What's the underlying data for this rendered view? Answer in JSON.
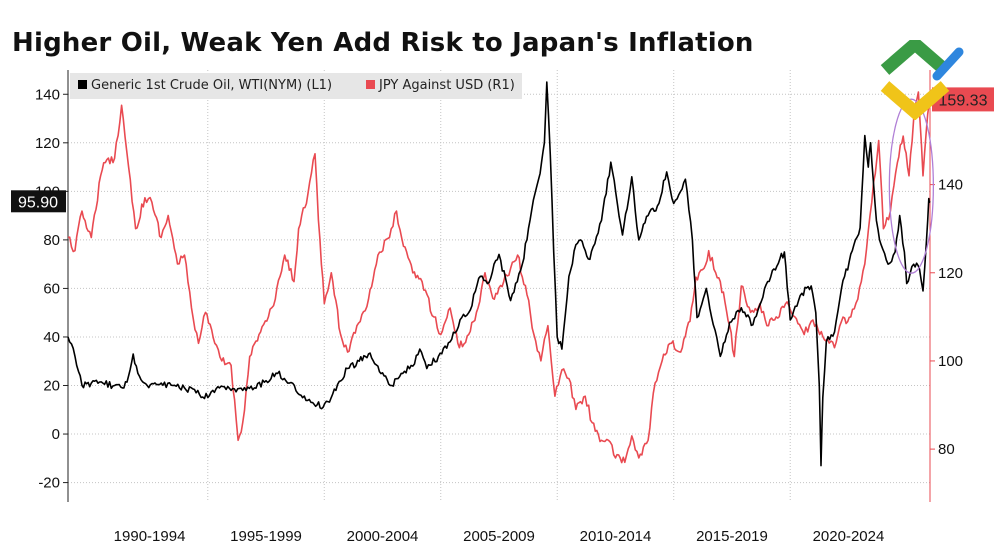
{
  "title": "Higher Oil, Weak Yen Add Risk to Japan's Inflation",
  "logo": {
    "name": "brand logo",
    "colors": [
      "#3a9b45",
      "#f0c419",
      "#2e86de"
    ]
  },
  "chart_data": {
    "type": "line",
    "title": "Higher Oil, Weak Yen Add Risk to Japan's Inflation",
    "xlabel": "",
    "x_range": [
      1988.0,
      2025.0
    ],
    "x_tick_labels": [
      {
        "x": 1991.5,
        "label": "1990-1994"
      },
      {
        "x": 1996.5,
        "label": "1995-1999"
      },
      {
        "x": 2001.5,
        "label": "2000-2004"
      },
      {
        "x": 2006.5,
        "label": "2005-2009"
      },
      {
        "x": 2011.5,
        "label": "2010-2014"
      },
      {
        "x": 2016.5,
        "label": "2015-2019"
      },
      {
        "x": 2021.5,
        "label": "2020-2024"
      }
    ],
    "x_gridlines": [
      1994,
      1999,
      2004,
      2009,
      2014,
      2019
    ],
    "left_axis": {
      "ylim": [
        -28,
        150
      ],
      "ticks": [
        -20,
        0,
        20,
        40,
        60,
        80,
        100,
        120,
        140
      ]
    },
    "right_axis": {
      "ylim": [
        68,
        166
      ],
      "ticks": [
        80,
        100,
        120,
        140
      ]
    },
    "legend": [
      {
        "name": "Generic 1st Crude Oil, WTI(NYM) (L1)",
        "color": "#000000"
      },
      {
        "name": "JPY Against USD (R1)",
        "color": "#e94a51"
      }
    ],
    "last_value_labels": [
      {
        "series": "Generic 1st Crude Oil, WTI(NYM)",
        "label": "95.90",
        "value": 95.9,
        "axis": "left"
      },
      {
        "series": "JPY Against USD",
        "label": "159.33",
        "value": 159.33,
        "axis": "right"
      }
    ],
    "annotation": {
      "type": "ellipse",
      "color": "#b07fd6",
      "x": 2024.2,
      "left_value": 98
    },
    "series": [
      {
        "name": "Generic 1st Crude Oil, WTI(NYM)",
        "axis": "left",
        "color": "#000000",
        "points": [
          [
            1988.0,
            40
          ],
          [
            1988.3,
            32
          ],
          [
            1988.6,
            20
          ],
          [
            1989.0,
            21
          ],
          [
            1989.5,
            21
          ],
          [
            1990.0,
            20
          ],
          [
            1990.4,
            19
          ],
          [
            1990.6,
            24
          ],
          [
            1990.8,
            33
          ],
          [
            1991.0,
            25
          ],
          [
            1991.4,
            20
          ],
          [
            1992.0,
            21
          ],
          [
            1992.5,
            20
          ],
          [
            1993.0,
            19
          ],
          [
            1993.5,
            17
          ],
          [
            1994.0,
            15
          ],
          [
            1994.5,
            19
          ],
          [
            1995.0,
            18
          ],
          [
            1995.5,
            18
          ],
          [
            1996.0,
            19
          ],
          [
            1996.5,
            22
          ],
          [
            1997.0,
            25
          ],
          [
            1997.5,
            21
          ],
          [
            1998.0,
            16
          ],
          [
            1998.5,
            13
          ],
          [
            1998.95,
            11
          ],
          [
            1999.5,
            18
          ],
          [
            2000.0,
            27
          ],
          [
            2000.5,
            30
          ],
          [
            2000.9,
            33
          ],
          [
            2001.3,
            28
          ],
          [
            2001.9,
            20
          ],
          [
            2002.3,
            25
          ],
          [
            2002.8,
            28
          ],
          [
            2003.1,
            35
          ],
          [
            2003.4,
            27
          ],
          [
            2003.9,
            32
          ],
          [
            2004.4,
            38
          ],
          [
            2004.9,
            48
          ],
          [
            2005.2,
            50
          ],
          [
            2005.7,
            65
          ],
          [
            2006.0,
            62
          ],
          [
            2006.5,
            74
          ],
          [
            2007.0,
            55
          ],
          [
            2007.5,
            70
          ],
          [
            2007.9,
            92
          ],
          [
            2008.2,
            105
          ],
          [
            2008.45,
            120
          ],
          [
            2008.55,
            145
          ],
          [
            2008.7,
            115
          ],
          [
            2008.85,
            75
          ],
          [
            2009.0,
            40
          ],
          [
            2009.2,
            35
          ],
          [
            2009.5,
            65
          ],
          [
            2009.8,
            78
          ],
          [
            2010.0,
            80
          ],
          [
            2010.4,
            72
          ],
          [
            2010.9,
            88
          ],
          [
            2011.3,
            112
          ],
          [
            2011.8,
            82
          ],
          [
            2012.2,
            106
          ],
          [
            2012.5,
            80
          ],
          [
            2012.9,
            90
          ],
          [
            2013.3,
            94
          ],
          [
            2013.7,
            108
          ],
          [
            2014.0,
            95
          ],
          [
            2014.5,
            105
          ],
          [
            2014.8,
            80
          ],
          [
            2015.0,
            48
          ],
          [
            2015.4,
            60
          ],
          [
            2015.7,
            45
          ],
          [
            2016.0,
            32
          ],
          [
            2016.4,
            46
          ],
          [
            2016.9,
            52
          ],
          [
            2017.4,
            45
          ],
          [
            2017.9,
            60
          ],
          [
            2018.3,
            68
          ],
          [
            2018.75,
            75
          ],
          [
            2019.0,
            47
          ],
          [
            2019.5,
            58
          ],
          [
            2019.9,
            61
          ],
          [
            2020.1,
            50
          ],
          [
            2020.25,
            20
          ],
          [
            2020.32,
            -13
          ],
          [
            2020.4,
            15
          ],
          [
            2020.55,
            38
          ],
          [
            2020.9,
            42
          ],
          [
            2021.2,
            60
          ],
          [
            2021.8,
            80
          ],
          [
            2022.0,
            85
          ],
          [
            2022.2,
            123
          ],
          [
            2022.35,
            110
          ],
          [
            2022.45,
            120
          ],
          [
            2022.7,
            88
          ],
          [
            2022.9,
            78
          ],
          [
            2023.2,
            70
          ],
          [
            2023.5,
            75
          ],
          [
            2023.7,
            90
          ],
          [
            2023.9,
            75
          ],
          [
            2024.0,
            62
          ],
          [
            2024.3,
            70
          ],
          [
            2024.55,
            68
          ],
          [
            2024.7,
            59
          ],
          [
            2024.85,
            80
          ],
          [
            2024.95,
            97
          ],
          [
            2025.0,
            95.9
          ]
        ]
      },
      {
        "name": "JPY Against USD",
        "axis": "right",
        "color": "#e94a51",
        "points": [
          [
            1988.0,
            128
          ],
          [
            1988.3,
            125
          ],
          [
            1988.6,
            134
          ],
          [
            1989.0,
            128
          ],
          [
            1989.4,
            142
          ],
          [
            1989.6,
            145
          ],
          [
            1990.0,
            146
          ],
          [
            1990.3,
            158
          ],
          [
            1990.6,
            144
          ],
          [
            1990.9,
            130
          ],
          [
            1991.3,
            137
          ],
          [
            1991.6,
            136
          ],
          [
            1992.0,
            128
          ],
          [
            1992.3,
            133
          ],
          [
            1992.7,
            122
          ],
          [
            1993.0,
            124
          ],
          [
            1993.3,
            112
          ],
          [
            1993.6,
            104
          ],
          [
            1993.9,
            111
          ],
          [
            1994.3,
            104
          ],
          [
            1994.6,
            100
          ],
          [
            1995.0,
            99
          ],
          [
            1995.3,
            82
          ],
          [
            1995.5,
            86
          ],
          [
            1995.8,
            101
          ],
          [
            1996.2,
            106
          ],
          [
            1996.6,
            110
          ],
          [
            1996.9,
            114
          ],
          [
            1997.3,
            124
          ],
          [
            1997.7,
            118
          ],
          [
            1997.9,
            130
          ],
          [
            1998.3,
            138
          ],
          [
            1998.6,
            147
          ],
          [
            1998.75,
            132
          ],
          [
            1999.0,
            113
          ],
          [
            1999.3,
            120
          ],
          [
            1999.7,
            106
          ],
          [
            2000.0,
            102
          ],
          [
            2000.4,
            108
          ],
          [
            2000.9,
            114
          ],
          [
            2001.3,
            124
          ],
          [
            2001.8,
            128
          ],
          [
            2002.1,
            134
          ],
          [
            2002.4,
            126
          ],
          [
            2002.8,
            120
          ],
          [
            2003.2,
            118
          ],
          [
            2003.7,
            110
          ],
          [
            2004.0,
            106
          ],
          [
            2004.4,
            112
          ],
          [
            2004.8,
            103
          ],
          [
            2005.2,
            106
          ],
          [
            2005.6,
            112
          ],
          [
            2005.9,
            120
          ],
          [
            2006.3,
            114
          ],
          [
            2006.7,
            118
          ],
          [
            2007.0,
            121
          ],
          [
            2007.3,
            124
          ],
          [
            2007.7,
            115
          ],
          [
            2008.0,
            106
          ],
          [
            2008.3,
            100
          ],
          [
            2008.6,
            108
          ],
          [
            2008.9,
            92
          ],
          [
            2009.2,
            98
          ],
          [
            2009.5,
            96
          ],
          [
            2009.8,
            89
          ],
          [
            2010.2,
            92
          ],
          [
            2010.5,
            86
          ],
          [
            2010.9,
            82
          ],
          [
            2011.2,
            82
          ],
          [
            2011.5,
            78
          ],
          [
            2011.9,
            77
          ],
          [
            2012.2,
            83
          ],
          [
            2012.5,
            78
          ],
          [
            2012.9,
            82
          ],
          [
            2013.2,
            95
          ],
          [
            2013.5,
            100
          ],
          [
            2013.9,
            104
          ],
          [
            2014.3,
            102
          ],
          [
            2014.7,
            109
          ],
          [
            2014.95,
            119
          ],
          [
            2015.3,
            121
          ],
          [
            2015.5,
            125
          ],
          [
            2015.8,
            120
          ],
          [
            2016.0,
            118
          ],
          [
            2016.4,
            108
          ],
          [
            2016.6,
            101
          ],
          [
            2016.9,
            117
          ],
          [
            2017.3,
            111
          ],
          [
            2017.7,
            113
          ],
          [
            2018.0,
            108
          ],
          [
            2018.4,
            110
          ],
          [
            2018.8,
            113
          ],
          [
            2019.2,
            110
          ],
          [
            2019.6,
            106
          ],
          [
            2019.9,
            109
          ],
          [
            2020.2,
            107
          ],
          [
            2020.6,
            105
          ],
          [
            2020.9,
            103
          ],
          [
            2021.2,
            109
          ],
          [
            2021.6,
            110
          ],
          [
            2021.9,
            114
          ],
          [
            2022.2,
            122
          ],
          [
            2022.5,
            136
          ],
          [
            2022.8,
            150
          ],
          [
            2023.0,
            130
          ],
          [
            2023.3,
            134
          ],
          [
            2023.6,
            145
          ],
          [
            2023.85,
            151
          ],
          [
            2024.1,
            142
          ],
          [
            2024.3,
            155
          ],
          [
            2024.5,
            161
          ],
          [
            2024.7,
            142
          ],
          [
            2024.9,
            156
          ],
          [
            2025.0,
            159.33
          ]
        ]
      }
    ]
  }
}
